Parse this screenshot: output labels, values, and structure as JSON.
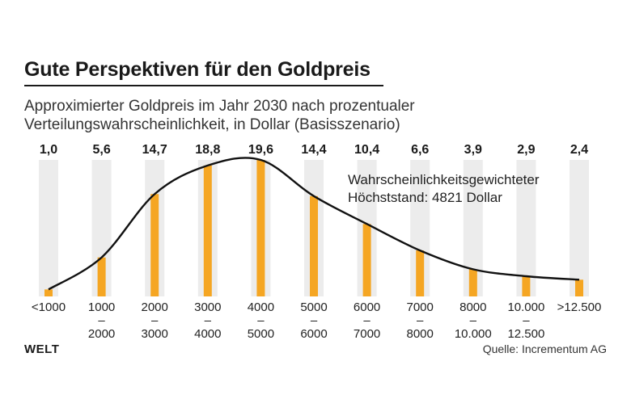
{
  "header": {
    "title": "Gute Perspektiven für den Goldpreis",
    "subtitle_line1": "Approximierter Goldpreis im Jahr 2030 nach prozentualer",
    "subtitle_line2": "Verteilungswahrscheinlichkeit, in Dollar (Basisszenario)"
  },
  "annotation": {
    "line1": "Wahrscheinlichkeitsgewichteter",
    "line2": "Höchststand: 4821 Dollar"
  },
  "footer": {
    "logo": "WELT",
    "source": "Quelle: Incrementum AG"
  },
  "colors": {
    "bar": "#f5a623",
    "band": "#ececec",
    "curve": "#111111",
    "text": "#222222"
  },
  "chart_data": {
    "type": "bar",
    "title": "Gute Perspektiven für den Goldpreis",
    "xlabel": "",
    "ylabel": "",
    "ylim": [
      0,
      20
    ],
    "categories": [
      [
        "<1000"
      ],
      [
        "1000",
        "–",
        "2000"
      ],
      [
        "2000",
        "–",
        "3000"
      ],
      [
        "3000",
        "–",
        "4000"
      ],
      [
        "4000",
        "–",
        "5000"
      ],
      [
        "5000",
        "–",
        "6000"
      ],
      [
        "6000",
        "–",
        "7000"
      ],
      [
        "7000",
        "–",
        "8000"
      ],
      [
        "8000",
        "–",
        "10.000"
      ],
      [
        "10.000",
        "–",
        "12.500"
      ],
      [
        ">12.500"
      ]
    ],
    "values": [
      1.0,
      5.6,
      14.7,
      18.8,
      19.6,
      14.4,
      10.4,
      6.6,
      3.9,
      2.9,
      2.4
    ],
    "value_labels": [
      "1,0",
      "5,6",
      "14,7",
      "18,8",
      "19,6",
      "14,4",
      "10,4",
      "6,6",
      "3,9",
      "2,9",
      "2,4"
    ],
    "curve": "smooth distribution line over the bars",
    "grid": false,
    "legend": "none"
  }
}
